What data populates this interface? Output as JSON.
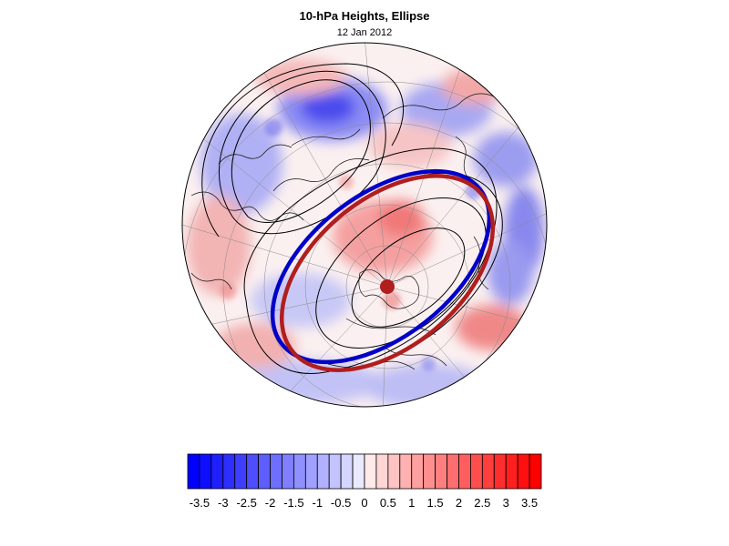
{
  "title": "10-hPa Heights, Ellipse",
  "subtitle": "12 Jan 2012",
  "colorbar": {
    "ticks": [
      "-3.5",
      "-3",
      "-2.5",
      "-2",
      "-1.5",
      "-1",
      "-0.5",
      "0",
      "0.5",
      "1",
      "1.5",
      "2",
      "2.5",
      "3",
      "3.5"
    ],
    "range": [
      -3.75,
      3.75
    ],
    "n_bins": 30,
    "colors": {
      "negative_end": "#0000ff",
      "center": "#ffffff",
      "positive_end": "#ff0000"
    }
  },
  "map": {
    "projection": "orthographic-polar-north",
    "graticule": true,
    "coastlines": true,
    "ellipse_colors": {
      "ellipse_fit": "#0000c8",
      "ellipse_alt": "#b01e1e",
      "center_dot": "#b01e1e"
    }
  }
}
